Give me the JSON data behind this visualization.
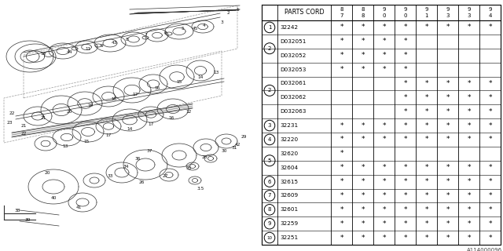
{
  "part_id": "A114000096",
  "bg_color": "#ffffff",
  "col_headers": [
    "8\n7",
    "8\n8",
    "9\n0",
    "9\n0",
    "9\n1",
    "9\n3",
    "9\n3",
    "9\n4"
  ],
  "rows": [
    {
      "num": "1",
      "code": "32242",
      "marks": [
        1,
        1,
        1,
        1,
        1,
        1,
        1,
        1
      ]
    },
    {
      "num": "2",
      "code": "D032051",
      "marks": [
        1,
        1,
        1,
        1,
        0,
        0,
        0,
        0
      ]
    },
    {
      "num": "",
      "code": "D032052",
      "marks": [
        1,
        1,
        1,
        1,
        0,
        0,
        0,
        0
      ]
    },
    {
      "num": "2",
      "code": "D032053",
      "marks": [
        1,
        1,
        1,
        1,
        0,
        0,
        0,
        0
      ]
    },
    {
      "num": "",
      "code": "D032061",
      "marks": [
        0,
        0,
        0,
        1,
        1,
        1,
        1,
        1
      ]
    },
    {
      "num": "",
      "code": "D032062",
      "marks": [
        0,
        0,
        0,
        1,
        1,
        1,
        1,
        1
      ]
    },
    {
      "num": "",
      "code": "D032063",
      "marks": [
        0,
        0,
        0,
        1,
        1,
        1,
        1,
        1
      ]
    },
    {
      "num": "3",
      "code": "32231",
      "marks": [
        1,
        1,
        1,
        1,
        1,
        1,
        1,
        1
      ]
    },
    {
      "num": "4",
      "code": "32220",
      "marks": [
        1,
        1,
        1,
        1,
        1,
        1,
        1,
        1
      ]
    },
    {
      "num": "5",
      "code": "32620",
      "marks": [
        1,
        0,
        0,
        0,
        0,
        0,
        0,
        0
      ]
    },
    {
      "num": "",
      "code": "32604",
      "marks": [
        1,
        1,
        1,
        1,
        1,
        1,
        1,
        1
      ]
    },
    {
      "num": "6",
      "code": "32615",
      "marks": [
        1,
        1,
        1,
        1,
        1,
        1,
        1,
        1
      ]
    },
    {
      "num": "7",
      "code": "32609",
      "marks": [
        1,
        1,
        1,
        1,
        1,
        1,
        1,
        1
      ]
    },
    {
      "num": "8",
      "code": "32601",
      "marks": [
        1,
        1,
        1,
        1,
        1,
        1,
        1,
        1
      ]
    },
    {
      "num": "9",
      "code": "32259",
      "marks": [
        1,
        1,
        1,
        1,
        1,
        1,
        1,
        1
      ]
    },
    {
      "num": "10",
      "code": "32251",
      "marks": [
        1,
        1,
        1,
        1,
        1,
        1,
        1,
        1
      ]
    }
  ],
  "line_color": "#000000",
  "diagram_color": "#333333"
}
